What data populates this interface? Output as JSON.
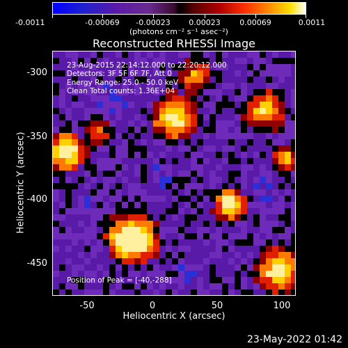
{
  "colorbar": {
    "tick_labels": [
      "-0.0011",
      "-0.00069",
      "-0.00023",
      "0.00023",
      "0.00069",
      "0.0011"
    ],
    "units": "(photons cm⁻² s⁻¹ asec⁻²)"
  },
  "title": "Reconstructed RHESSI Image",
  "annotations": {
    "time_range": "23-Aug-2015 22:14:12.000 to 22:20:12.000",
    "detectors": "Detectors: 3F 5F 6F 7F, Att 0",
    "energy_range": "Energy Range: 25.0 - 50.0 keV",
    "clean_counts": "Clean     Total counts: 1.36E+04",
    "peak": "Position of Peak = [-40,-288]"
  },
  "y_axis": {
    "label": "Heliocentric Y (arcsec)",
    "ticks": [
      "-300",
      "-350",
      "-400",
      "-450"
    ]
  },
  "x_axis": {
    "label": "Heliocentric X (arcsec)",
    "ticks": [
      "-50",
      "0",
      "50",
      "100"
    ]
  },
  "footer_timestamp": "23-May-2022 01:42",
  "colors": {
    "hot": "#ffe000",
    "warm": "#ff4000",
    "cool": "#5a1aa8",
    "cold": "#1a20d0",
    "black": "#000000"
  }
}
